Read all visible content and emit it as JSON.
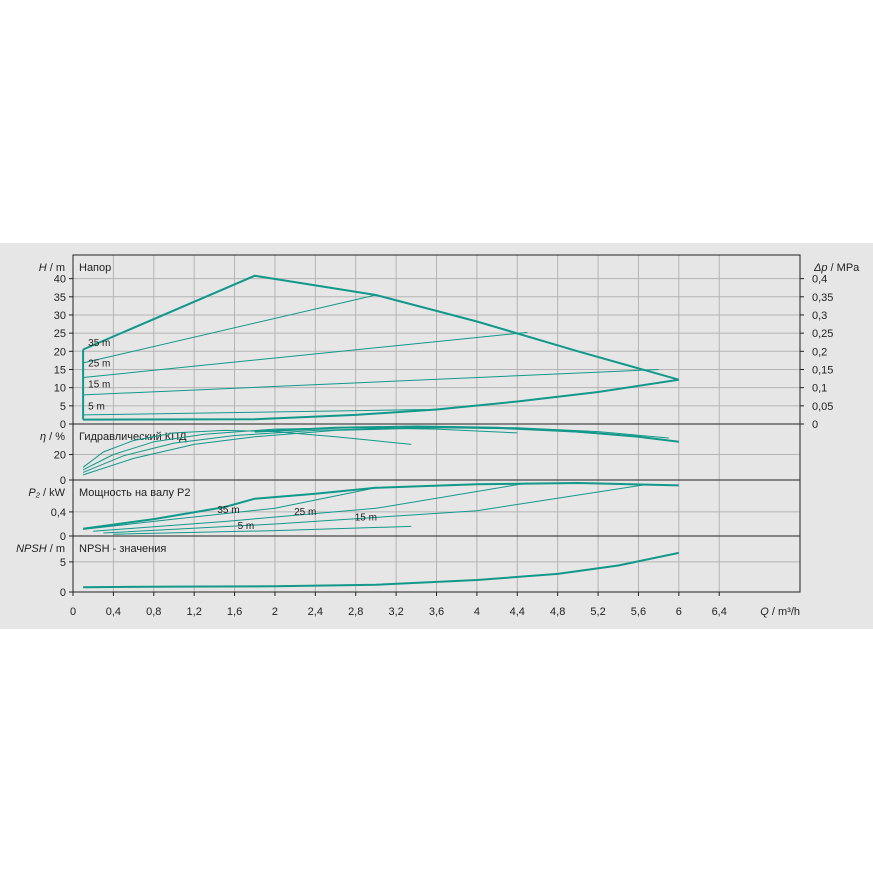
{
  "colors": {
    "curve": "#12988a",
    "grid": "#b4b4b4",
    "axis": "#222222",
    "background": "#e6e6e6"
  },
  "chart_data": {
    "type": "line",
    "x_axis": {
      "label": "Q / m³/h",
      "range": [
        0,
        7.2
      ],
      "ticks": [
        0,
        0.4,
        0.8,
        1.2,
        1.6,
        2,
        2.4,
        2.8,
        3.2,
        3.6,
        4,
        4.4,
        4.8,
        5.2,
        5.6,
        6,
        6.4
      ],
      "tick_labels": [
        "0",
        "0,4",
        "0,8",
        "1,2",
        "1,6",
        "2",
        "2,4",
        "2,8",
        "3,2",
        "3,6",
        "4",
        "4,4",
        "4,8",
        "5,2",
        "5,6",
        "6",
        "6,4"
      ]
    },
    "panels": [
      {
        "id": "head",
        "title": "Напор",
        "ylabel_var": "H",
        "ylabel_unit": " / m",
        "ylim": [
          0,
          46.5
        ],
        "yticks": [
          0,
          5,
          10,
          15,
          20,
          25,
          30,
          35,
          40
        ],
        "ytick_labels": [
          "0",
          "5",
          "10",
          "15",
          "20",
          "25",
          "30",
          "35",
          "40"
        ],
        "right_axis": {
          "label_var": "Δp",
          "label_unit": " / MPa",
          "ticks": [
            0,
            0.05,
            0.1,
            0.15,
            0.2,
            0.25,
            0.3,
            0.35,
            0.4
          ],
          "tick_labels": [
            "0",
            "0,05",
            "0,1",
            "0,15",
            "0,2",
            "0,25",
            "0,3",
            "0,35",
            "0,4"
          ]
        },
        "series": [
          {
            "width": 2,
            "points": [
              [
                0.1,
                20.5
              ],
              [
                1.8,
                40.8
              ],
              [
                3.0,
                35.5
              ],
              [
                4.0,
                28.2
              ],
              [
                5.0,
                20.0
              ],
              [
                6.0,
                12.2
              ]
            ]
          },
          {
            "width": 2,
            "points": [
              [
                0.1,
                1.2
              ],
              [
                1.8,
                1.3
              ],
              [
                2.8,
                2.5
              ],
              [
                3.6,
                4.0
              ],
              [
                4.4,
                6.2
              ],
              [
                5.2,
                8.8
              ],
              [
                6.0,
                12.2
              ]
            ]
          },
          {
            "width": 2,
            "points": [
              [
                0.1,
                1.2
              ],
              [
                0.1,
                20.5
              ]
            ]
          },
          {
            "width": 1,
            "points": [
              [
                0.1,
                16.8
              ],
              [
                3.0,
                35.5
              ]
            ]
          },
          {
            "width": 1,
            "points": [
              [
                0.1,
                12.8
              ],
              [
                4.5,
                25.2
              ]
            ]
          },
          {
            "width": 1,
            "points": [
              [
                0.1,
                8.0
              ],
              [
                5.8,
                15.0
              ]
            ]
          },
          {
            "width": 1,
            "points": [
              [
                0.1,
                2.5
              ],
              [
                3.5,
                4.0
              ]
            ]
          }
        ],
        "annotations": [
          {
            "text": "35 m",
            "x": 0.15,
            "y": 21.5
          },
          {
            "text": "25 m",
            "x": 0.15,
            "y": 15.8
          },
          {
            "text": "15 m",
            "x": 0.15,
            "y": 10.0
          },
          {
            "text": "5 m",
            "x": 0.15,
            "y": 4.0
          }
        ]
      },
      {
        "id": "efficiency",
        "title": "Гидравлический КПД",
        "ylabel_var": "η",
        "ylabel_unit": " / %",
        "ylim": [
          0,
          44
        ],
        "yticks": [
          0,
          20
        ],
        "ytick_labels": [
          "0",
          "20"
        ],
        "series": [
          {
            "width": 2,
            "points": [
              [
                1.8,
                38
              ],
              [
                2.6,
                41
              ],
              [
                3.4,
                42
              ],
              [
                4.2,
                41
              ],
              [
                5.0,
                38
              ],
              [
                5.6,
                34
              ],
              [
                6.0,
                30
              ]
            ]
          },
          {
            "width": 1,
            "points": [
              [
                0.1,
                10
              ],
              [
                0.3,
                22
              ],
              [
                0.6,
                31
              ],
              [
                1.0,
                37
              ],
              [
                1.5,
                39
              ],
              [
                2.0,
                38
              ],
              [
                2.6,
                34
              ],
              [
                3.35,
                28
              ]
            ]
          },
          {
            "width": 1,
            "points": [
              [
                0.1,
                8
              ],
              [
                0.4,
                20
              ],
              [
                0.8,
                30
              ],
              [
                1.3,
                36
              ],
              [
                2.0,
                40
              ],
              [
                2.8,
                41
              ],
              [
                3.6,
                40
              ],
              [
                4.4,
                37
              ]
            ]
          },
          {
            "width": 1,
            "points": [
              [
                0.1,
                6
              ],
              [
                0.5,
                19
              ],
              [
                1.0,
                29
              ],
              [
                1.6,
                35
              ],
              [
                2.4,
                39
              ],
              [
                3.4,
                41
              ],
              [
                4.4,
                41
              ],
              [
                5.2,
                38
              ],
              [
                5.9,
                33
              ]
            ]
          },
          {
            "width": 1,
            "points": [
              [
                0.1,
                4
              ],
              [
                0.6,
                17
              ],
              [
                1.2,
                28
              ],
              [
                1.8,
                34
              ],
              [
                2.6,
                39
              ],
              [
                3.6,
                41
              ],
              [
                4.6,
                40
              ],
              [
                5.6,
                34
              ],
              [
                6.0,
                30
              ]
            ]
          }
        ],
        "annotations": []
      },
      {
        "id": "power",
        "title": "Мощность на валу P2",
        "ylabel_var": "P₂",
        "ylabel_unit": " / kW",
        "ylim": [
          0,
          0.93
        ],
        "yticks": [
          0,
          0.4
        ],
        "ytick_labels": [
          "0",
          "0,4"
        ],
        "series": [
          {
            "width": 2,
            "points": [
              [
                0.1,
                0.12
              ],
              [
                0.8,
                0.28
              ],
              [
                1.5,
                0.48
              ],
              [
                1.8,
                0.62
              ],
              [
                2.4,
                0.7
              ],
              [
                3.0,
                0.8
              ],
              [
                4.0,
                0.86
              ],
              [
                5.0,
                0.88
              ],
              [
                6.0,
                0.84
              ]
            ]
          },
          {
            "width": 1,
            "points": [
              [
                0.1,
                0.11
              ],
              [
                1.0,
                0.28
              ],
              [
                2.0,
                0.46
              ],
              [
                3.0,
                0.8
              ]
            ]
          },
          {
            "width": 1,
            "points": [
              [
                0.2,
                0.08
              ],
              [
                1.5,
                0.24
              ],
              [
                3.0,
                0.46
              ],
              [
                4.5,
                0.88
              ]
            ]
          },
          {
            "width": 1,
            "points": [
              [
                0.3,
                0.05
              ],
              [
                2.0,
                0.2
              ],
              [
                4.0,
                0.42
              ],
              [
                5.7,
                0.86
              ]
            ]
          },
          {
            "width": 1,
            "points": [
              [
                0.4,
                0.03
              ],
              [
                2.0,
                0.09
              ],
              [
                3.35,
                0.16
              ]
            ]
          }
        ],
        "annotations": [
          {
            "text": "35 m",
            "x": 1.43,
            "y": 0.38
          },
          {
            "text": "25 m",
            "x": 2.19,
            "y": 0.35
          },
          {
            "text": "15 m",
            "x": 2.79,
            "y": 0.26
          },
          {
            "text": "5 m",
            "x": 1.63,
            "y": 0.12
          }
        ]
      },
      {
        "id": "npsh",
        "title": "NPSH - значения",
        "ylabel_var": "NPSH",
        "ylabel_unit": " / m",
        "ylim": [
          0,
          9.3
        ],
        "yticks": [
          0,
          5
        ],
        "ytick_labels": [
          "0",
          "5"
        ],
        "series": [
          {
            "width": 2,
            "points": [
              [
                0.1,
                0.8
              ],
              [
                1.0,
                0.9
              ],
              [
                2.0,
                0.95
              ],
              [
                3.0,
                1.2
              ],
              [
                4.0,
                2.0
              ],
              [
                4.8,
                3.0
              ],
              [
                5.4,
                4.4
              ],
              [
                6.0,
                6.5
              ]
            ]
          }
        ],
        "annotations": []
      }
    ]
  }
}
